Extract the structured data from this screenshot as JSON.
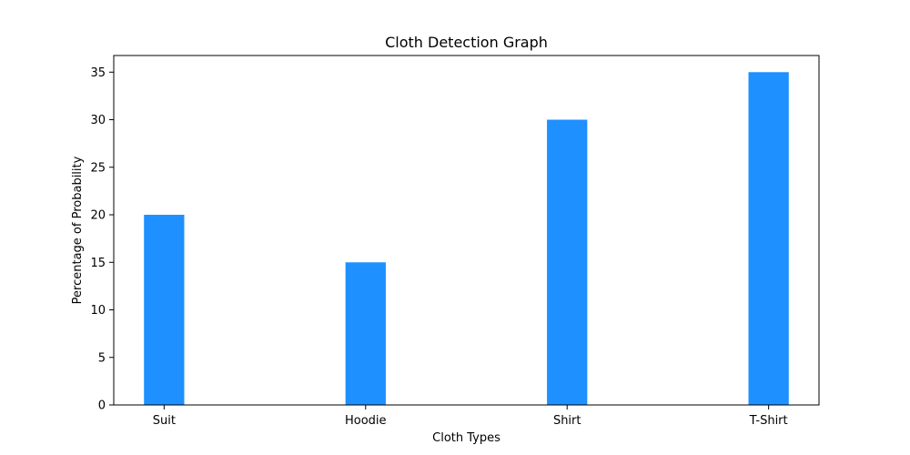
{
  "chart_data": {
    "type": "bar",
    "title": "Cloth Detection Graph",
    "xlabel": "Cloth Types",
    "ylabel": "Percentage of Probability",
    "categories": [
      "Suit",
      "Hoodie",
      "Shirt",
      "T-Shirt"
    ],
    "values": [
      20,
      15,
      30,
      35
    ],
    "ylim": [
      0,
      36.75
    ],
    "yticks": [
      0,
      5,
      10,
      15,
      20,
      25,
      30,
      35
    ],
    "bar_color": "#1e90ff",
    "grid": false
  }
}
